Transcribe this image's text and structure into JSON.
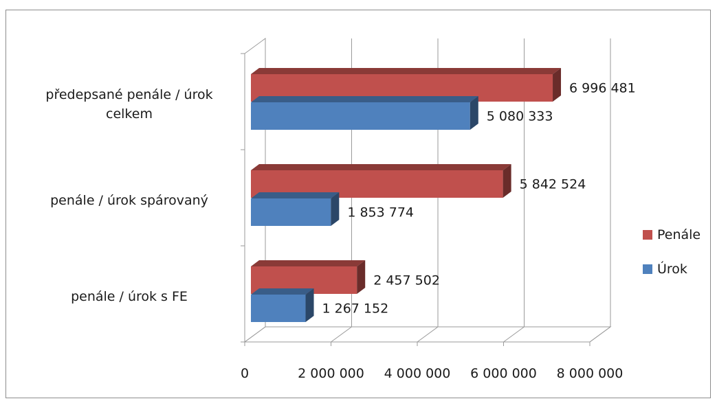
{
  "chart_data": {
    "type": "bar",
    "orientation": "horizontal",
    "style": "3d-clustered",
    "categories": [
      [
        "předepsané penále / úrok",
        "celkem"
      ],
      [
        "penále / úrok spárovaný"
      ],
      [
        "penále / úrok s  FE"
      ]
    ],
    "series": [
      {
        "name": "Penále",
        "color": "#c0504d",
        "values": [
          6996481,
          5842524,
          2457502
        ],
        "labels": [
          "6 996 481",
          "5 842 524",
          "2 457 502"
        ]
      },
      {
        "name": "Úrok",
        "color": "#4f81bd",
        "values": [
          5080333,
          1853774,
          1267152
        ],
        "labels": [
          "5 080 333",
          "1 853 774",
          "1 267 152"
        ]
      }
    ],
    "x_ticks": [
      0,
      2000000,
      4000000,
      6000000,
      8000000
    ],
    "x_tick_labels": [
      "0",
      "2 000 000",
      "4 000 000",
      "6 000 000",
      "8 000 000"
    ],
    "xlim": [
      0,
      8000000
    ],
    "grid": true,
    "legend_position": "right",
    "legend": [
      {
        "label": "Penále",
        "color": "#c0504d"
      },
      {
        "label": "Úrok",
        "color": "#4f81bd"
      }
    ]
  }
}
